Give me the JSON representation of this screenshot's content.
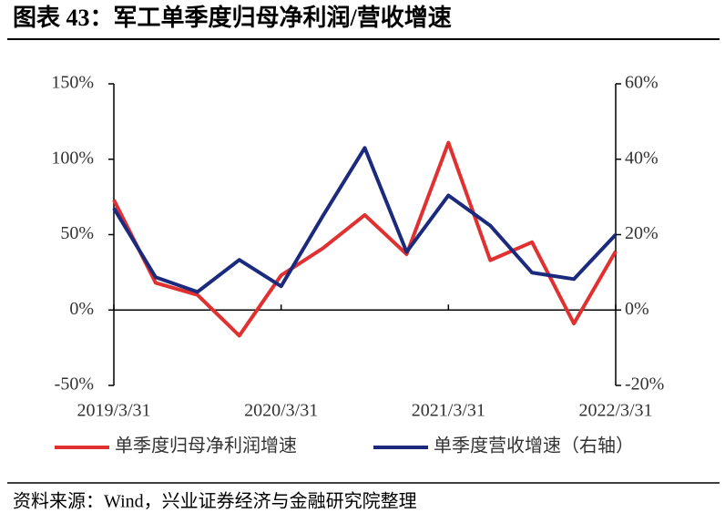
{
  "chart_data": {
    "type": "line",
    "title": "图表 43：军工单季度归母净利润/营收增速",
    "categories": [
      "2019/3/31",
      null,
      null,
      null,
      "2020/3/31",
      null,
      null,
      null,
      "2021/3/31",
      null,
      null,
      null,
      "2022/3/31"
    ],
    "series": [
      {
        "name": "单季度归母净利润增速",
        "color": "#e03030",
        "values": [
          73,
          18,
          10,
          -17,
          23,
          41,
          63,
          37,
          111,
          33,
          45,
          -9,
          39
        ]
      },
      {
        "name": "单季度营收增速（右轴）",
        "color": "#1c2a7e",
        "axis": "y2",
        "values": [
          27,
          8.7,
          4.8,
          13.3,
          6.3,
          25,
          43,
          15.4,
          30.4,
          22.4,
          9.9,
          8.2,
          20
        ]
      }
    ],
    "ylim": [
      -50,
      150
    ],
    "yticks": [
      {
        "value": -50,
        "label": "-50%"
      },
      {
        "value": 0,
        "label": "0%"
      },
      {
        "value": 50,
        "label": "50%"
      },
      {
        "value": 100,
        "label": "100%"
      },
      {
        "value": 150,
        "label": "150%"
      }
    ],
    "y2lim": [
      -20,
      60
    ],
    "y2ticks": [
      {
        "value": -20,
        "label": "-20%"
      },
      {
        "value": 0,
        "label": "0%"
      },
      {
        "value": 20,
        "label": "20%"
      },
      {
        "value": 40,
        "label": "40%"
      },
      {
        "value": 60,
        "label": "60%"
      }
    ],
    "source": "资料来源：Wind，兴业证券经济与金融研究院整理"
  }
}
